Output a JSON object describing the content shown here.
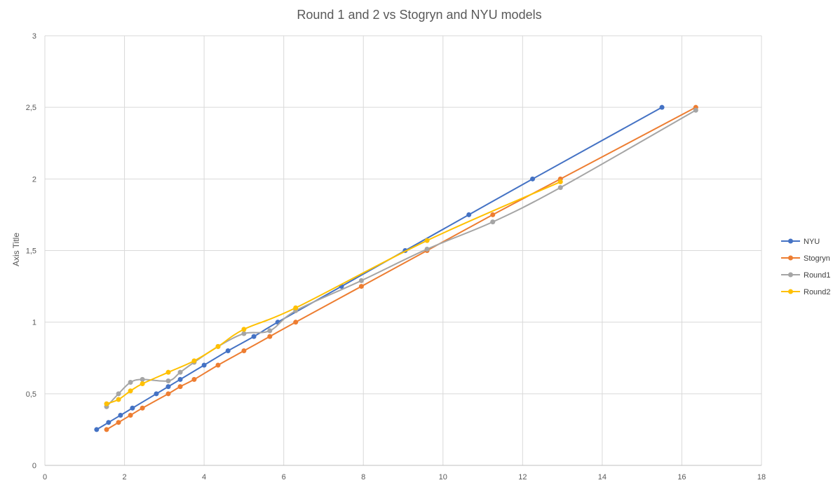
{
  "chart_data": {
    "type": "line",
    "title": "Round 1 and 2 vs Stogryn and NYU models",
    "xlabel": "",
    "ylabel": "Axis Title",
    "xlim": [
      0,
      18
    ],
    "ylim": [
      0,
      3
    ],
    "x_ticks": [
      "0",
      "2",
      "4",
      "6",
      "8",
      "10",
      "12",
      "14",
      "16",
      "18"
    ],
    "y_ticks": [
      "0",
      "0,5",
      "1",
      "1,5",
      "2",
      "2,5",
      "3"
    ],
    "grid": true,
    "legend_position": "right",
    "series": [
      {
        "name": "NYU",
        "color": "#4472C4",
        "points": [
          [
            1.3,
            0.25
          ],
          [
            1.6,
            0.3
          ],
          [
            1.9,
            0.35
          ],
          [
            2.2,
            0.4
          ],
          [
            2.8,
            0.5
          ],
          [
            3.1,
            0.55
          ],
          [
            3.4,
            0.6
          ],
          [
            4.0,
            0.7
          ],
          [
            4.6,
            0.8
          ],
          [
            5.25,
            0.9
          ],
          [
            5.85,
            1.0
          ],
          [
            7.45,
            1.25
          ],
          [
            9.05,
            1.5
          ],
          [
            10.65,
            1.75
          ],
          [
            12.25,
            2.0
          ],
          [
            15.5,
            2.5
          ]
        ]
      },
      {
        "name": "Stogryn",
        "color": "#ED7D31",
        "points": [
          [
            1.55,
            0.25
          ],
          [
            1.85,
            0.3
          ],
          [
            2.15,
            0.35
          ],
          [
            2.45,
            0.4
          ],
          [
            3.1,
            0.5
          ],
          [
            3.4,
            0.55
          ],
          [
            3.75,
            0.6
          ],
          [
            4.35,
            0.7
          ],
          [
            5.0,
            0.8
          ],
          [
            5.65,
            0.9
          ],
          [
            6.3,
            1.0
          ],
          [
            7.95,
            1.25
          ],
          [
            9.6,
            1.5
          ],
          [
            11.25,
            1.75
          ],
          [
            12.95,
            2.0
          ],
          [
            16.35,
            2.5
          ]
        ]
      },
      {
        "name": "Round1",
        "color": "#A5A5A5",
        "points": [
          [
            1.55,
            0.41
          ],
          [
            1.85,
            0.5
          ],
          [
            2.15,
            0.58
          ],
          [
            2.45,
            0.6
          ],
          [
            3.1,
            0.59
          ],
          [
            3.4,
            0.65
          ],
          [
            3.75,
            0.72
          ],
          [
            4.35,
            0.83
          ],
          [
            5.0,
            0.92
          ],
          [
            5.65,
            0.94
          ],
          [
            6.3,
            1.08
          ],
          [
            7.95,
            1.29
          ],
          [
            9.6,
            1.51
          ],
          [
            11.25,
            1.7
          ],
          [
            12.95,
            1.94
          ],
          [
            16.35,
            2.48
          ]
        ]
      },
      {
        "name": "Round2",
        "color": "#FFC000",
        "points": [
          [
            1.55,
            0.43
          ],
          [
            1.85,
            0.46
          ],
          [
            2.15,
            0.52
          ],
          [
            2.45,
            0.57
          ],
          [
            3.1,
            0.65
          ],
          [
            3.75,
            0.73
          ],
          [
            4.35,
            0.83
          ],
          [
            5.0,
            0.95
          ],
          [
            6.3,
            1.1
          ],
          [
            9.6,
            1.57
          ],
          [
            12.95,
            1.98
          ]
        ]
      }
    ]
  }
}
